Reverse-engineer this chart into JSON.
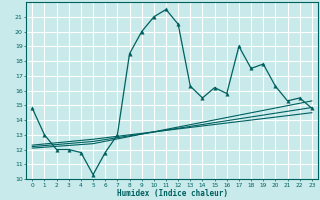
{
  "xlabel": "Humidex (Indice chaleur)",
  "xlim": [
    -0.5,
    23.5
  ],
  "ylim": [
    10,
    22
  ],
  "yticks": [
    10,
    11,
    12,
    13,
    14,
    15,
    16,
    17,
    18,
    19,
    20,
    21
  ],
  "xticks": [
    0,
    1,
    2,
    3,
    4,
    5,
    6,
    7,
    8,
    9,
    10,
    11,
    12,
    13,
    14,
    15,
    16,
    17,
    18,
    19,
    20,
    21,
    22,
    23
  ],
  "bg_color": "#c8eaea",
  "grid_color": "#a0d4d4",
  "line_color": "#006060",
  "main_x": [
    0,
    1,
    2,
    3,
    4,
    5,
    6,
    7,
    8,
    9,
    10,
    11,
    12,
    13,
    14,
    15,
    16,
    17,
    18,
    19,
    20,
    21,
    22,
    23
  ],
  "main_y": [
    14.8,
    13.0,
    12.0,
    12.0,
    11.8,
    10.3,
    11.8,
    13.0,
    18.5,
    20.0,
    21.0,
    21.5,
    20.5,
    16.3,
    15.5,
    16.2,
    15.8,
    19.0,
    17.5,
    17.8,
    16.3,
    15.3,
    15.5,
    14.8
  ],
  "line2_x": [
    0,
    5,
    23
  ],
  "line2_y": [
    12.1,
    12.4,
    15.3
  ],
  "line3_x": [
    0,
    5,
    23
  ],
  "line3_y": [
    12.2,
    12.55,
    14.85
  ],
  "line4_x": [
    0,
    5,
    23
  ],
  "line4_y": [
    12.3,
    12.7,
    14.5
  ]
}
